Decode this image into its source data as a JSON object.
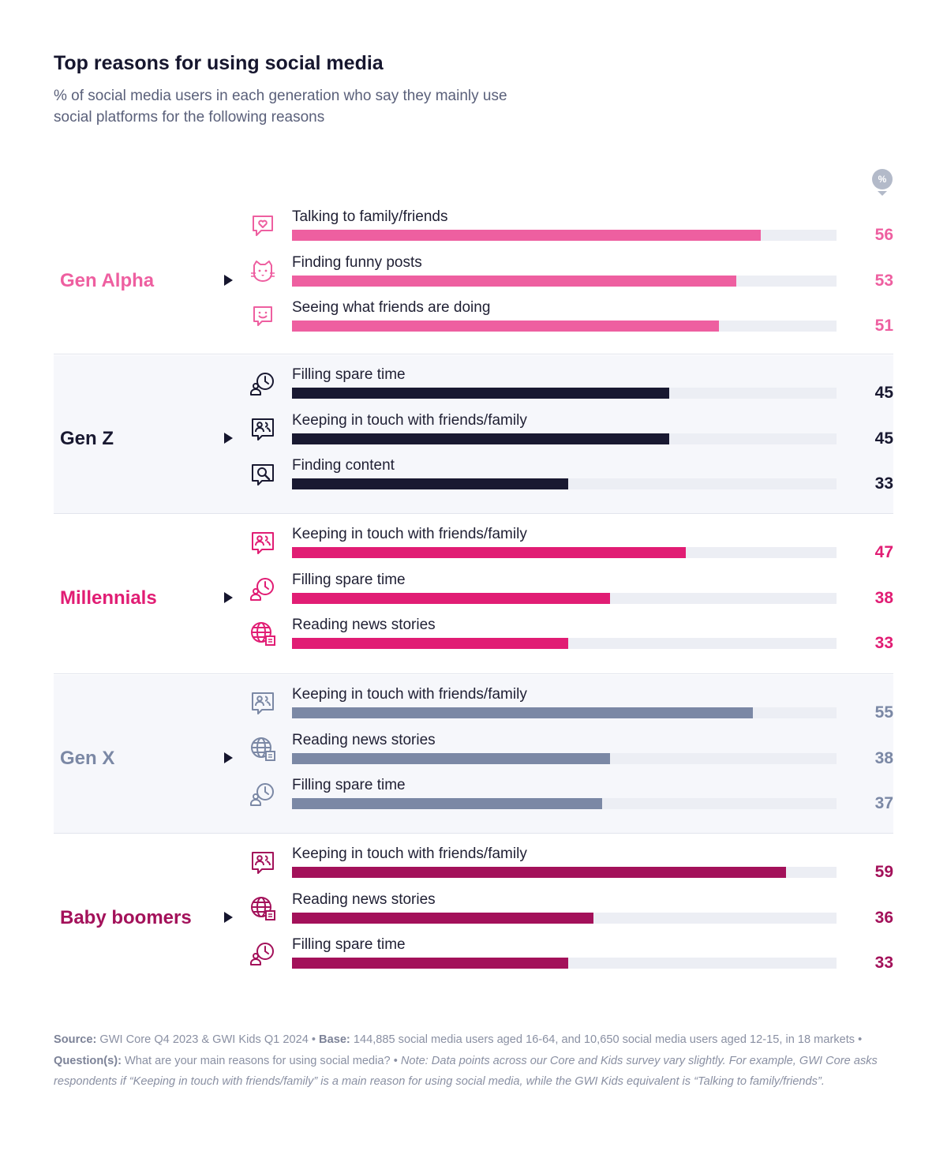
{
  "title": "Top reasons for using social media",
  "subtitle": "% of social media users in each generation who say they mainly use social platforms for the following reasons",
  "percent_badge": "%",
  "footnote": {
    "source_label": "Source:",
    "source_text": " GWI Core Q4 2023 & GWI Kids Q1 2024 • ",
    "base_label": "Base:",
    "base_text": " 144,885 social media users aged 16-64, and 10,650 social media users aged 12-15, in 18 markets • ",
    "question_label": "Question(s):",
    "question_text": " What are your main reasons for using social media? • ",
    "note_text": "Note: Data points across our Core and Kids survey vary slightly. For example, GWI Core asks respondents if “Keeping in touch with friends/family” is a main reason for using social media, while the GWI Kids equivalent is “Talking to family/friends”."
  },
  "chart_data": {
    "type": "bar",
    "orientation": "horizontal",
    "title": "Top reasons for using social media",
    "unit": "%",
    "xlim": [
      0,
      65
    ],
    "groups": [
      {
        "name": "Gen Alpha",
        "color": "#ee5fa0",
        "shaded": false,
        "items": [
          {
            "label": "Talking to family/friends",
            "value": 56,
            "icon": "heart-speech-bubble-icon"
          },
          {
            "label": "Finding funny posts",
            "value": 53,
            "icon": "cat-face-icon"
          },
          {
            "label": "Seeing what friends are doing",
            "value": 51,
            "icon": "smiley-speech-bubble-icon"
          }
        ]
      },
      {
        "name": "Gen Z",
        "color": "#191931",
        "shaded": true,
        "items": [
          {
            "label": "Filling spare time",
            "value": 45,
            "icon": "person-clock-icon"
          },
          {
            "label": "Keeping in touch with friends/family",
            "value": 45,
            "icon": "people-speech-bubble-icon"
          },
          {
            "label": "Finding content",
            "value": 33,
            "icon": "magnifier-speech-bubble-icon"
          }
        ]
      },
      {
        "name": "Millennials",
        "color": "#e11d74",
        "shaded": false,
        "items": [
          {
            "label": "Keeping in touch with friends/family",
            "value": 47,
            "icon": "people-speech-bubble-icon"
          },
          {
            "label": "Filling spare time",
            "value": 38,
            "icon": "person-clock-icon"
          },
          {
            "label": "Reading news stories",
            "value": 33,
            "icon": "globe-news-icon"
          }
        ]
      },
      {
        "name": "Gen X",
        "color": "#7b88a5",
        "shaded": true,
        "items": [
          {
            "label": "Keeping in touch with friends/family",
            "value": 55,
            "icon": "people-speech-bubble-icon"
          },
          {
            "label": "Reading news stories",
            "value": 38,
            "icon": "globe-news-icon"
          },
          {
            "label": "Filling spare time",
            "value": 37,
            "icon": "person-clock-icon"
          }
        ]
      },
      {
        "name": "Baby boomers",
        "color": "#a3115a",
        "shaded": false,
        "items": [
          {
            "label": "Keeping in touch with friends/family",
            "value": 59,
            "icon": "people-speech-bubble-icon"
          },
          {
            "label": "Reading news stories",
            "value": 36,
            "icon": "globe-news-icon"
          },
          {
            "label": "Filling spare time",
            "value": 33,
            "icon": "person-clock-icon"
          }
        ]
      }
    ]
  }
}
